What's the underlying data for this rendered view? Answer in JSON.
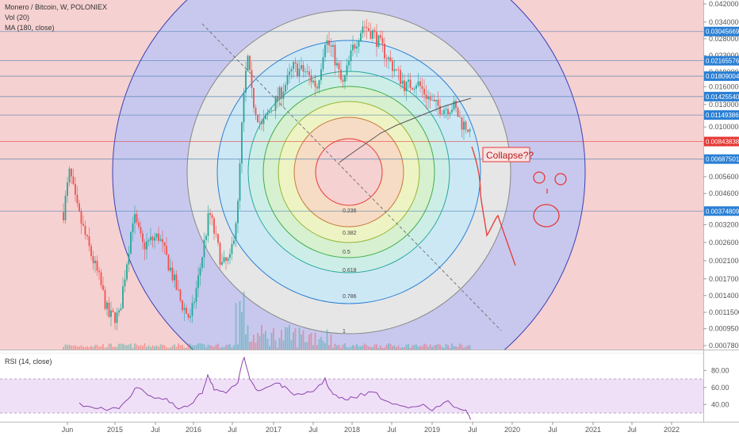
{
  "header": {
    "title": "Monero / Bitcoin, W, POLONIEX",
    "vol": "Vol (20)",
    "ma": "MA (180, close)",
    "rsi": "RSI (14, close)"
  },
  "colors": {
    "up": "#26a69a",
    "down": "#ef5350",
    "ma": "#555555",
    "rsi": "#8e44ad",
    "annotation": "#e53935",
    "price_tag": "#2a7fd4",
    "current_tag": "#e53935"
  },
  "chart_data": {
    "type": "candlestick",
    "x_axis": {
      "labels": [
        "Jun",
        "2015",
        "Jul",
        "2016",
        "Jul",
        "2017",
        "Jul",
        "2018",
        "Jul",
        "2019",
        "Jul",
        "2020",
        "Jul",
        "2021",
        "Jul",
        "2022"
      ]
    },
    "y_axis": {
      "scale": "log",
      "ticks": [
        "0.04200000",
        "0.03400000",
        "0.02800000",
        "0.02300000",
        "0.01900000",
        "0.01600000",
        "0.01300000",
        "0.01000000",
        "0.00830000",
        "0.00680000",
        "0.00560000",
        "0.00460000",
        "0.00380000",
        "0.00320000",
        "0.00260000",
        "0.00210000",
        "0.00170000",
        "0.00140000",
        "0.00115000",
        "0.00095000",
        "0.00078000"
      ]
    },
    "horizontal_levels": [
      {
        "label": "0.03045669",
        "value": 0.03045669,
        "current": false
      },
      {
        "label": "0.02165576",
        "value": 0.02165576,
        "current": false
      },
      {
        "label": "0.01809004",
        "value": 0.01809004,
        "current": false
      },
      {
        "label": "0.01425540",
        "value": 0.0142554,
        "current": false
      },
      {
        "label": "0.01149386",
        "value": 0.01149386,
        "current": false
      },
      {
        "label": "0.00843838",
        "value": 0.00843838,
        "current": true
      },
      {
        "label": "0.00687501",
        "value": 0.00687501,
        "current": false
      },
      {
        "label": "0.00374809",
        "value": 0.00374809,
        "current": false
      }
    ],
    "fib_circles": {
      "levels": [
        "0.236",
        "0.382",
        "0.5",
        "0.618",
        "0.786",
        "1"
      ]
    },
    "rsi_axis": {
      "ticks": [
        "80.00",
        "60.00",
        "40.00"
      ]
    },
    "annotation": {
      "text": "Collapse??"
    }
  }
}
